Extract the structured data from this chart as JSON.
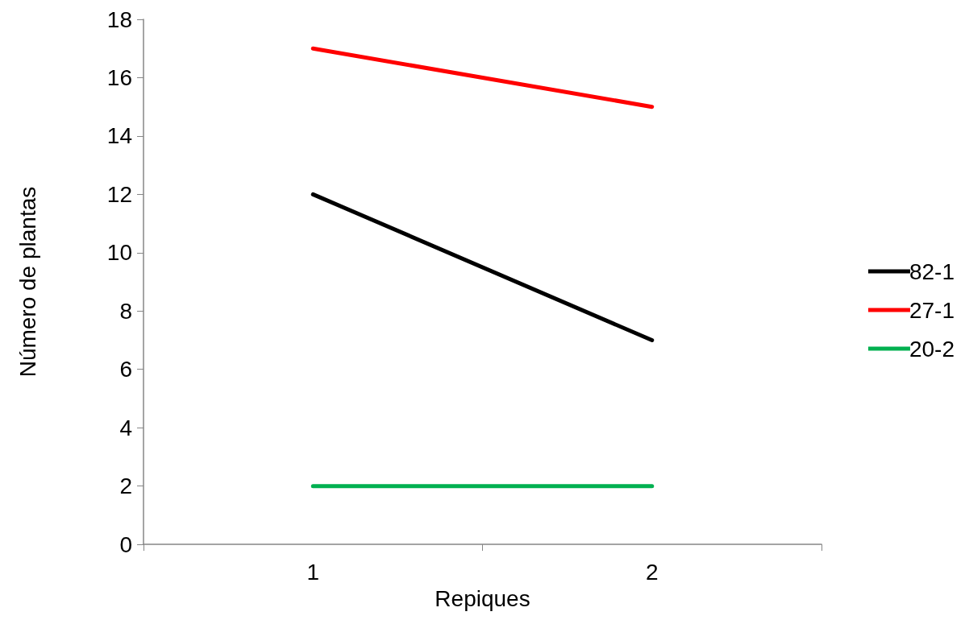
{
  "chart_data": {
    "type": "line",
    "xlabel": "Repiques",
    "ylabel": "Número de plantas",
    "categories": [
      "1",
      "2"
    ],
    "series": [
      {
        "name": "82-1",
        "color": "#000000",
        "values": [
          12,
          7
        ]
      },
      {
        "name": "27-1",
        "color": "#ff0000",
        "values": [
          17,
          15
        ]
      },
      {
        "name": "20-2",
        "color": "#00b050",
        "values": [
          2,
          2
        ]
      }
    ],
    "ylim": [
      0,
      18
    ],
    "yticks": [
      0,
      2,
      4,
      6,
      8,
      10,
      12,
      14,
      16,
      18
    ],
    "grid": false,
    "legend": "right",
    "marker": "none",
    "line_style": "solid"
  }
}
